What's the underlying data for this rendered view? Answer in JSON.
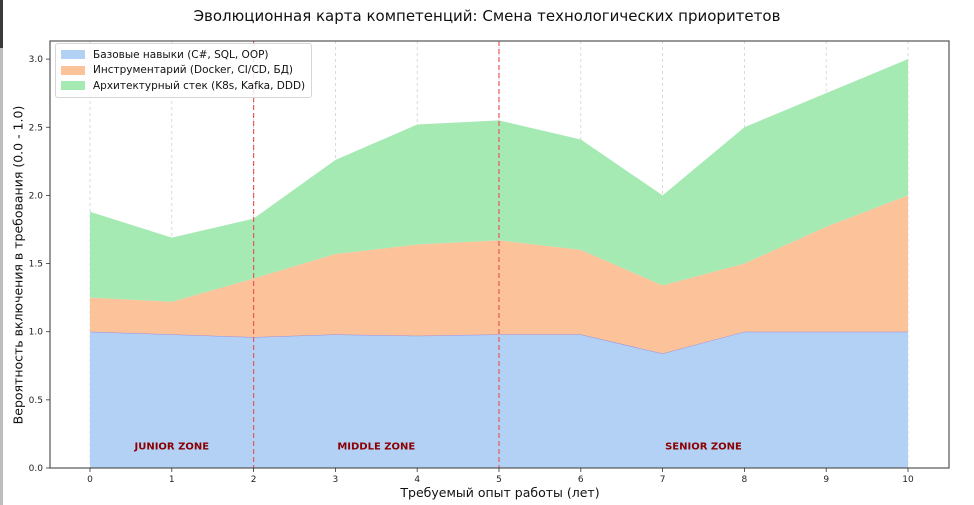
{
  "chart_data": {
    "type": "area",
    "stacked": true,
    "title": "Эволюционная карта компетенций: Смена технологических приоритетов",
    "xlabel": "Требуемый опыт работы (лет)",
    "ylabel": "Вероятность включения в требования (0.0 - 1.0)",
    "x": [
      0,
      1,
      2,
      3,
      4,
      5,
      6,
      7,
      8,
      9,
      10
    ],
    "xlim": [
      -0.5,
      10.5
    ],
    "ylim": [
      0,
      3.07
    ],
    "xticks": [
      "0",
      "1",
      "2",
      "3",
      "4",
      "5",
      "6",
      "7",
      "8",
      "9",
      "10"
    ],
    "yticks": [
      "0.0",
      "0.5",
      "1.0",
      "1.5",
      "2.0",
      "2.5",
      "3.0"
    ],
    "grid": "x-dashed",
    "legend_position": "upper left",
    "series": [
      {
        "name": "Базовые навыки (C#, SQL, OOP)",
        "color": "#b3d1f5",
        "values": [
          1.0,
          0.98,
          0.96,
          0.98,
          0.97,
          0.98,
          0.98,
          0.84,
          1.0,
          1.0,
          1.0
        ]
      },
      {
        "name": "Инструментарий (Docker, CI/CD, БД)",
        "color": "#fcc29a",
        "values": [
          0.25,
          0.24,
          0.43,
          0.59,
          0.67,
          0.69,
          0.62,
          0.5,
          0.5,
          0.77,
          1.0
        ]
      },
      {
        "name": "Архитектурный стек (K8s, Kafka, DDD)",
        "color": "#a5e9b3",
        "values": [
          0.63,
          0.47,
          0.44,
          0.69,
          0.88,
          0.88,
          0.81,
          0.66,
          1.0,
          0.98,
          1.0
        ]
      }
    ],
    "vlines": [
      {
        "x": 2,
        "style": "dashed",
        "color": "#e8595a"
      },
      {
        "x": 5,
        "style": "dashed",
        "color": "#e8595a"
      }
    ],
    "annotations": [
      {
        "text": "JUNIOR ZONE",
        "x": 1.0,
        "y": 0.12,
        "color": "#8b0000"
      },
      {
        "text": "MIDDLE ZONE",
        "x": 3.5,
        "y": 0.12,
        "color": "#8b0000"
      },
      {
        "text": "SENIOR ZONE",
        "x": 7.5,
        "y": 0.12,
        "color": "#8b0000"
      }
    ]
  }
}
